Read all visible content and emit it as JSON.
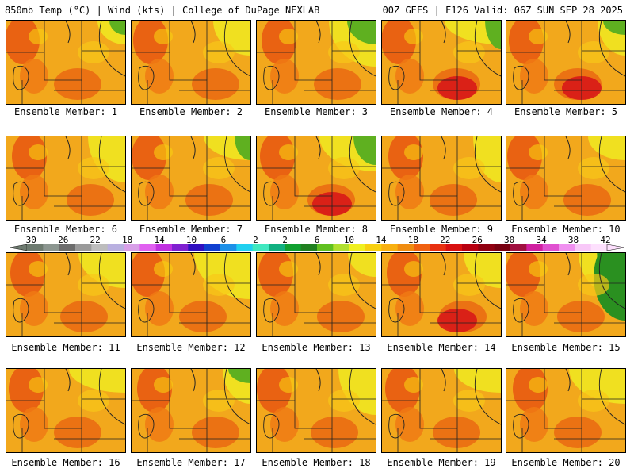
{
  "header": {
    "title_left": "850mb Temp (°C) | Wind (kts) | College of DuPage NEXLAB",
    "title_right": "00Z GEFS | F126 Valid: 06Z SUN SEP 28 2025"
  },
  "members": [
    {
      "label": "Ensemble Member: 1"
    },
    {
      "label": "Ensemble Member: 2"
    },
    {
      "label": "Ensemble Member: 3"
    },
    {
      "label": "Ensemble Member: 4"
    },
    {
      "label": "Ensemble Member: 5"
    },
    {
      "label": "Ensemble Member: 6"
    },
    {
      "label": "Ensemble Member: 7"
    },
    {
      "label": "Ensemble Member: 8"
    },
    {
      "label": "Ensemble Member: 9"
    },
    {
      "label": "Ensemble Member: 10"
    },
    {
      "label": "Ensemble Member: 11"
    },
    {
      "label": "Ensemble Member: 12"
    },
    {
      "label": "Ensemble Member: 13"
    },
    {
      "label": "Ensemble Member: 14"
    },
    {
      "label": "Ensemble Member: 15"
    },
    {
      "label": "Ensemble Member: 16"
    },
    {
      "label": "Ensemble Member: 17"
    },
    {
      "label": "Ensemble Member: 18"
    },
    {
      "label": "Ensemble Member: 19"
    },
    {
      "label": "Ensemble Member: 20"
    }
  ],
  "colorbar": {
    "labels": [
      "−30",
      "−26",
      "−22",
      "−18",
      "−14",
      "−10",
      "−6",
      "−2",
      "2",
      "6",
      "10",
      "14",
      "18",
      "22",
      "26",
      "30",
      "34",
      "38",
      "42"
    ],
    "colors": [
      "#6e7b70",
      "#8c9690",
      "#6d6d6d",
      "#9a9a9a",
      "#bdbdbd",
      "#b9b0e0",
      "#d8a0e8",
      "#e060f0",
      "#c030e0",
      "#8020d0",
      "#3010c0",
      "#1040d0",
      "#1c90e8",
      "#20d0f0",
      "#40e8c0",
      "#10b080",
      "#10a030",
      "#208020",
      "#60c020",
      "#b0e030",
      "#f0f020",
      "#f8d010",
      "#f8b010",
      "#f08c10",
      "#f06010",
      "#e83010",
      "#d81010",
      "#b80010",
      "#900010",
      "#780010",
      "#a01040",
      "#d020a0",
      "#e050d0",
      "#f090f0",
      "#f8c8f8",
      "#fde0fd"
    ]
  }
}
